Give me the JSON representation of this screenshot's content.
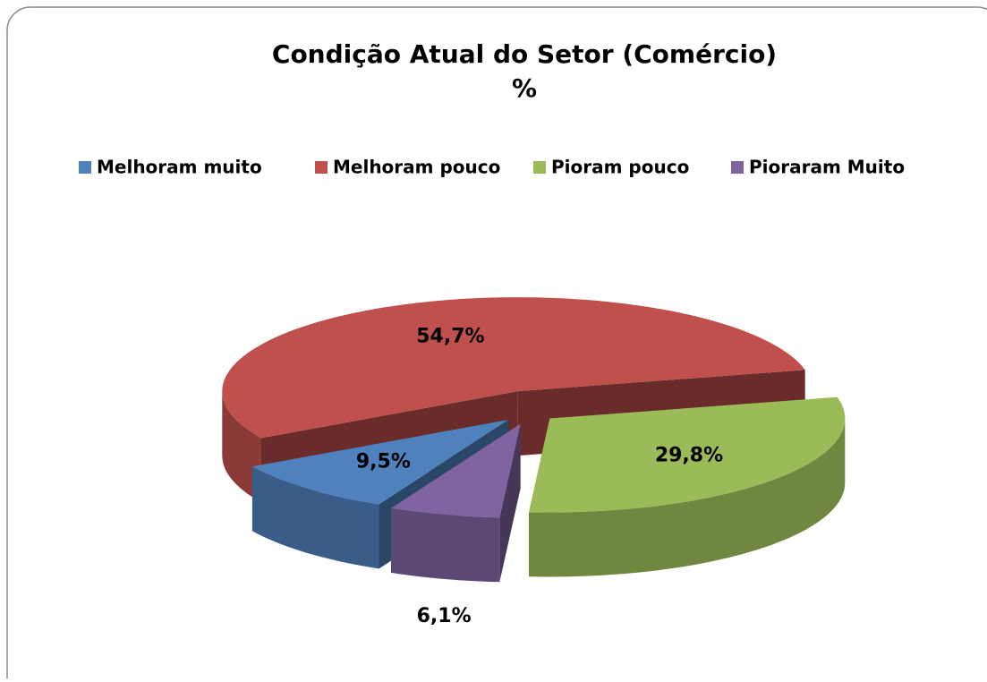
{
  "chart_data": {
    "type": "pie3d",
    "title": "Condição  Atual do Setor  (Comércio)",
    "subtitle": "%",
    "categories": [
      "Melhoram muito",
      "Melhoram pouco",
      "Pioram pouco",
      "Pioraram Muito"
    ],
    "values": [
      9.5,
      54.7,
      29.8,
      6.1
    ],
    "value_labels": [
      "9,5%",
      "54,7%",
      "29,8%",
      "6,1%"
    ],
    "colors": [
      "#4f81bd",
      "#c0504d",
      "#9bbb59",
      "#8064a2"
    ],
    "legend": "top"
  }
}
